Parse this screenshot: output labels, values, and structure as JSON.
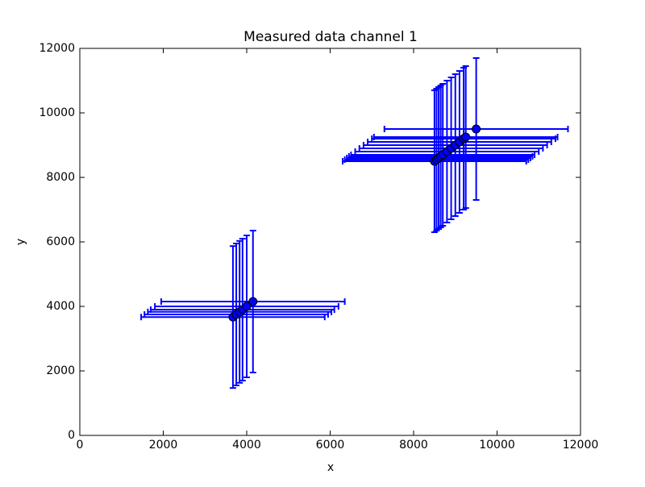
{
  "chart_data": {
    "type": "scatter",
    "title": "Measured data channel 1",
    "xlabel": "x",
    "ylabel": "y",
    "series": [
      {
        "color": "#0000ff",
        "x": [
          3670,
          3750,
          3830,
          3900,
          4000,
          4150,
          8500,
          8550,
          8600,
          8650,
          8700,
          8800,
          8900,
          9000,
          9100,
          9200,
          9250,
          9500
        ],
        "y": [
          3670,
          3750,
          3830,
          3900,
          4000,
          4150,
          8500,
          8550,
          8600,
          8650,
          8700,
          8800,
          8900,
          9000,
          9100,
          9200,
          9250,
          9500
        ],
        "xerr": [
          2200,
          2200,
          2200,
          2200,
          2200,
          2200,
          2200,
          2200,
          2200,
          2200,
          2200,
          2200,
          2200,
          2200,
          2200,
          2200,
          2200,
          2200
        ],
        "yerr": [
          2200,
          2200,
          2200,
          2200,
          2200,
          2200,
          2200,
          2200,
          2200,
          2200,
          2200,
          2200,
          2200,
          2200,
          2200,
          2200,
          2200,
          2200
        ]
      }
    ],
    "xlim": [
      0,
      12000
    ],
    "ylim": [
      0,
      12000
    ],
    "xticks": [
      0,
      2000,
      4000,
      6000,
      8000,
      10000,
      12000
    ],
    "yticks": [
      0,
      2000,
      4000,
      6000,
      8000,
      10000,
      12000
    ]
  }
}
